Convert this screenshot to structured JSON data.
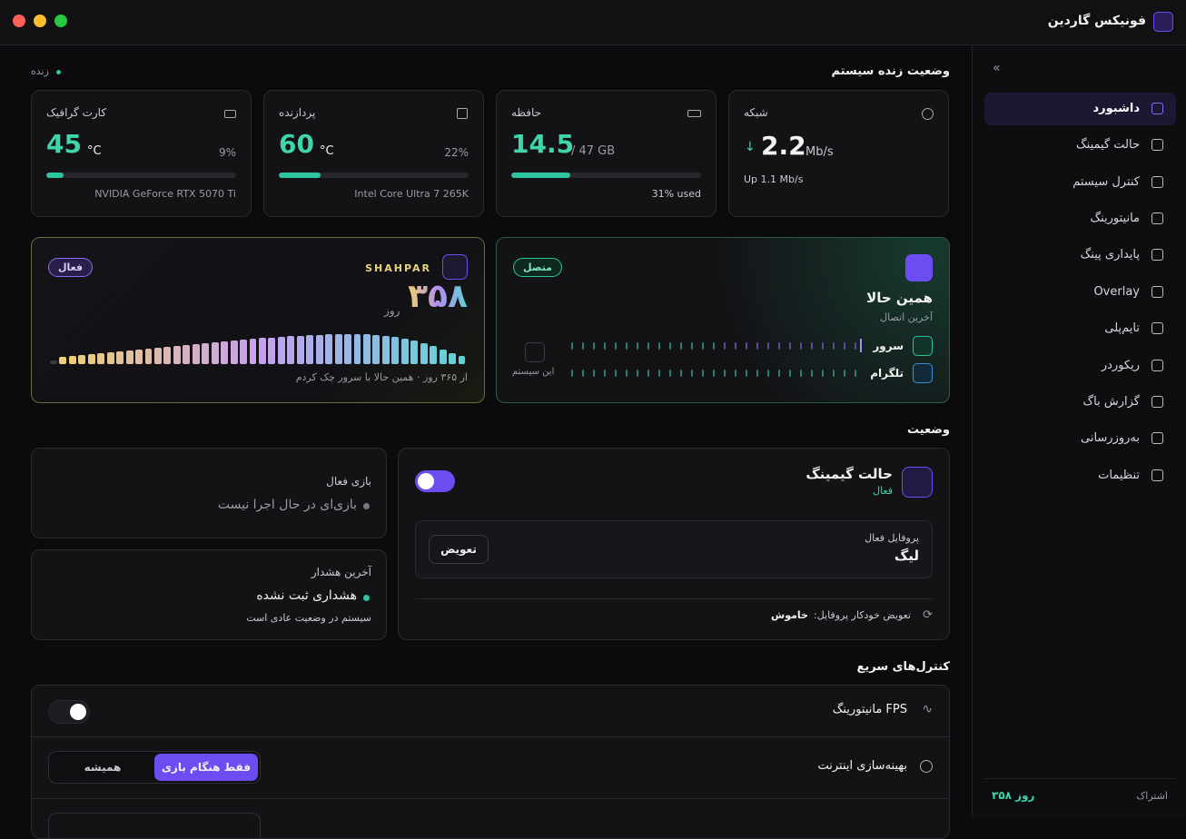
{
  "window": {
    "title": "فونیکس گاردین"
  },
  "live": {
    "title": "وضعیت زنده سیستم",
    "status": "زنده"
  },
  "cards": [
    {
      "title": "شبکه",
      "value": 2.2,
      "unit": "Mb/s",
      "sub": "Up 1.1 Mb/s"
    },
    {
      "title": "حافظه",
      "value": 14.5,
      "unit": "/ 47 GB",
      "usage": {
        "value": 31,
        "label": "31% used"
      }
    },
    {
      "title": "پردازنده",
      "value": 60,
      "unit": "°C",
      "usage": {
        "value": 22,
        "label": "22%"
      },
      "sub": "Intel Core Ultra 7 265K"
    },
    {
      "title": "کارت گرافیک",
      "value": 45,
      "unit": "°C",
      "usage": {
        "value": 9,
        "label": "9%"
      },
      "sub": "NVIDIA GeForce RTX 5070 Ti"
    }
  ],
  "shahpar": {
    "badge": "فعال",
    "brand": "SHAHPAR",
    "days": "۳۵۸",
    "unit": "روز",
    "caption": "از ۳۶۵ روز · همین حالا با سرور چک کردم",
    "bars": [
      4,
      8,
      9,
      10,
      11,
      12,
      13,
      14,
      15,
      16,
      17,
      18,
      19,
      20,
      21,
      22,
      23,
      24,
      25,
      26,
      27,
      28,
      29,
      29,
      30,
      31,
      31,
      32,
      32,
      33,
      33,
      33,
      33,
      33,
      32,
      31,
      30,
      28,
      26,
      23,
      20,
      16,
      12,
      9
    ]
  },
  "connection": {
    "badge": "متصل",
    "title": "همین حالا",
    "subtitle": "آخرین اتصال",
    "rows": [
      "سرور",
      "تلگرام"
    ],
    "system": "این سیستم"
  },
  "status": {
    "title": "وضعیت",
    "gaming": {
      "title": "حالت گیمینگ",
      "state": "فعال",
      "profile_label": "پروفایل فعال",
      "profile": "لیگ",
      "switch": "تعویض",
      "auto_label": "تعویض خودکار پروفایل:",
      "auto_value": "خاموش"
    },
    "active_game": {
      "title": "بازی فعال",
      "value": "بازی‌ای در حال اجرا نیست"
    },
    "alert": {
      "title": "آخرین هشدار",
      "value": "هشداری ثبت نشده",
      "sub": "سیستم در وضعیت عادی است"
    }
  },
  "quick": {
    "title": "کنترل‌های سریع",
    "fps": "مانیتورینگ FPS",
    "internet": "بهینه‌سازی اینترنت",
    "modes": [
      "فقط هنگام بازی",
      "همیشه"
    ]
  },
  "sidebar": {
    "items": [
      "داشبورد",
      "حالت گیمینگ",
      "کنترل سیستم",
      "مانیتورینگ",
      "پایداری پینگ",
      "Overlay",
      "تایم‌پلی",
      "ریکوردر",
      "گزارش باگ",
      "به‌روزرسانی",
      "تنظیمات"
    ],
    "subscription_label": "اشتراک",
    "subscription_value": "۳۵۸ روز"
  }
}
